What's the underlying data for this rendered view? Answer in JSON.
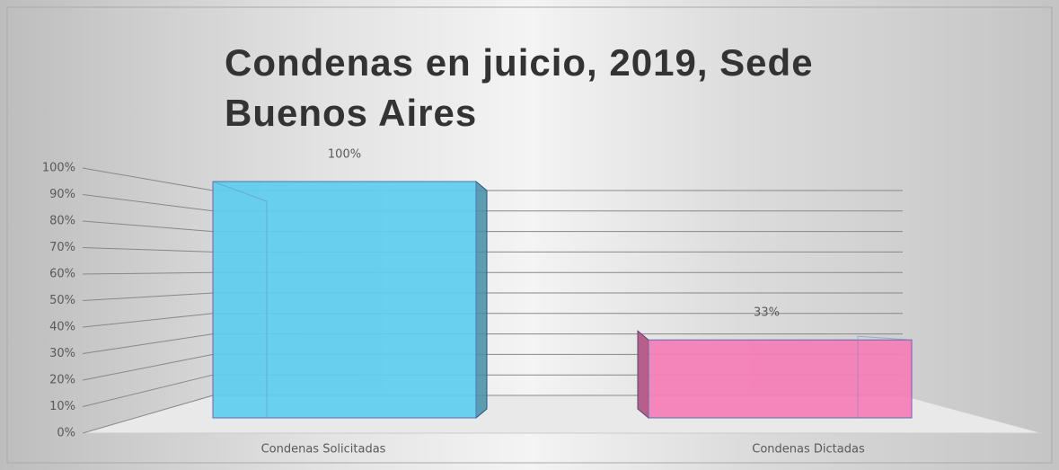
{
  "chart_data": {
    "type": "bar3d",
    "title": "Condenas en juicio, 2019, Sede Buenos Aires",
    "categories": [
      "Condenas Solicitadas",
      "Condenas Dictadas"
    ],
    "values": [
      100,
      33
    ],
    "value_labels": [
      "100%",
      "33%"
    ],
    "colors": [
      "#5dcdef",
      "#f57db6"
    ],
    "ylim": [
      0,
      100
    ],
    "yticks": [
      {
        "value": 0,
        "label": "0%"
      },
      {
        "value": 10,
        "label": "10%"
      },
      {
        "value": 20,
        "label": "20%"
      },
      {
        "value": 30,
        "label": "30%"
      },
      {
        "value": 40,
        "label": "40%"
      },
      {
        "value": 50,
        "label": "50%"
      },
      {
        "value": 60,
        "label": "60%"
      },
      {
        "value": 70,
        "label": "70%"
      },
      {
        "value": 80,
        "label": "80%"
      },
      {
        "value": 90,
        "label": "90%"
      },
      {
        "value": 100,
        "label": "100%"
      }
    ],
    "grid": true
  }
}
